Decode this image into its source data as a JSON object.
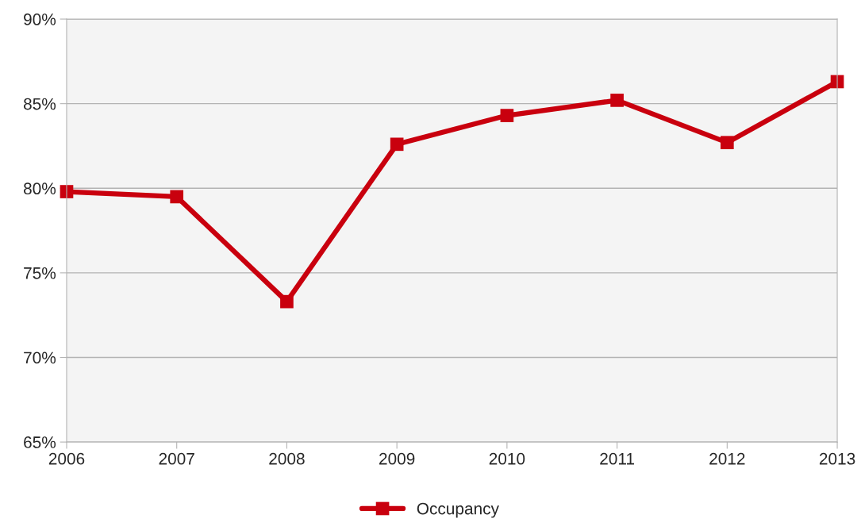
{
  "chart_data": {
    "type": "line",
    "x": [
      2006,
      2007,
      2008,
      2009,
      2010,
      2011,
      2012,
      2013
    ],
    "series": [
      {
        "name": "Occupancy",
        "color": "#c9000e",
        "values": [
          79.8,
          79.5,
          73.3,
          82.6,
          84.3,
          85.2,
          82.7,
          86.3
        ]
      }
    ],
    "xlim": [
      2006,
      2013
    ],
    "xticks": [
      2006,
      2007,
      2008,
      2009,
      2010,
      2011,
      2012,
      2013
    ],
    "ylim": [
      65,
      90
    ],
    "yticks": [
      {
        "value": 65,
        "label": "65%"
      },
      {
        "value": 70,
        "label": "70%"
      },
      {
        "value": 75,
        "label": "75%"
      },
      {
        "value": 80,
        "label": "80%"
      },
      {
        "value": 85,
        "label": "85%"
      },
      {
        "value": 90,
        "label": "90%"
      }
    ],
    "grid": "y",
    "legend": "bottom",
    "marker": "square",
    "line_style": "solid"
  }
}
